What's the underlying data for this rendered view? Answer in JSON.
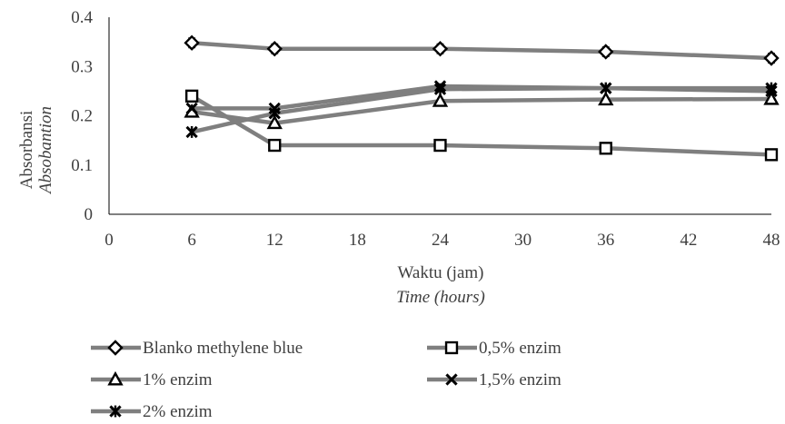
{
  "chart_data": {
    "type": "line",
    "title": "",
    "xlabel": "Waktu (jam)",
    "xlabel_italic": "Time (hours)",
    "ylabel": "Absorbansi",
    "ylabel_italic": "Absobantion",
    "x": [
      6,
      12,
      24,
      36,
      48
    ],
    "xlim": [
      0,
      48
    ],
    "xticks": [
      0,
      6,
      12,
      18,
      24,
      30,
      36,
      42,
      48
    ],
    "ylim": [
      0,
      0.4
    ],
    "yticks": [
      0,
      0.1,
      0.2,
      0.3,
      0.4
    ],
    "ytick_labels": [
      "0",
      "0.1",
      "0.2",
      "0.3",
      "0.4"
    ],
    "grid": false,
    "legend_position": "bottom",
    "line_color": "#7f7f7f",
    "marker_color": "#000000",
    "series": [
      {
        "name": "Blanko methylene blue",
        "marker": "diamond",
        "values": [
          0.348,
          0.336,
          0.336,
          0.33,
          0.317
        ],
        "error": 0.01
      },
      {
        "name": "0,5% enzim",
        "marker": "square",
        "values": [
          0.24,
          0.14,
          0.14,
          0.134,
          0.121
        ],
        "error": 0
      },
      {
        "name": "1% enzim",
        "marker": "triangle",
        "values": [
          0.208,
          0.185,
          0.23,
          0.233,
          0.234
        ],
        "error": 0
      },
      {
        "name": "1,5% enzim",
        "marker": "x",
        "values": [
          0.215,
          0.215,
          0.26,
          0.256,
          0.25
        ],
        "error": 0
      },
      {
        "name": "2% enzim",
        "marker": "star",
        "values": [
          0.167,
          0.205,
          0.254,
          0.256,
          0.256
        ],
        "error": 0
      }
    ]
  }
}
